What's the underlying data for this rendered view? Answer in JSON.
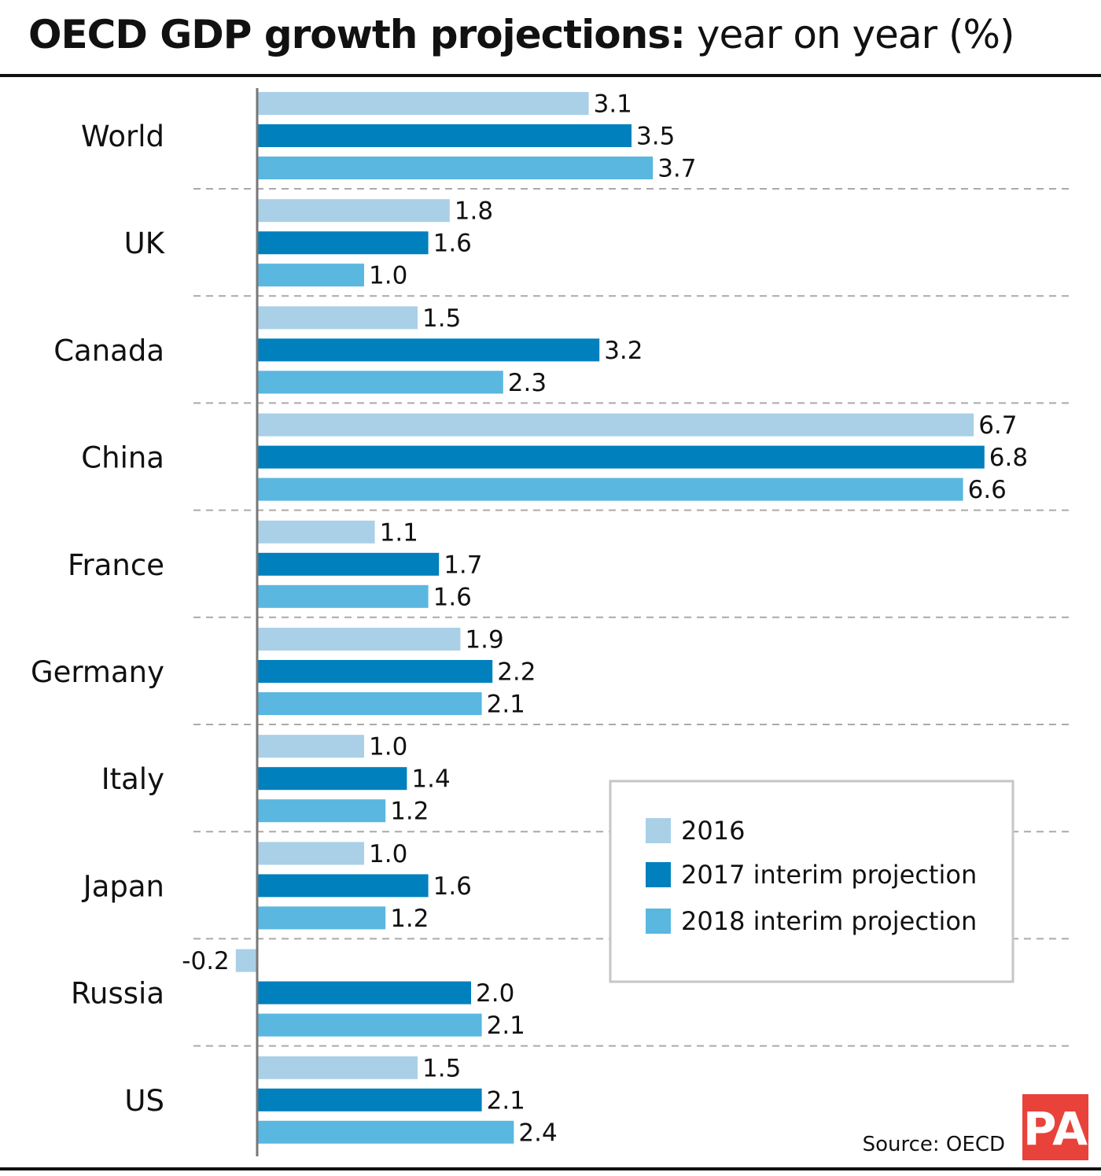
{
  "title": {
    "bold": "OECD GDP growth projections:",
    "regular": " year on year (%)"
  },
  "chart_data": {
    "type": "bar",
    "orientation": "horizontal",
    "categories": [
      "World",
      "UK",
      "Canada",
      "China",
      "France",
      "Germany",
      "Italy",
      "Japan",
      "Russia",
      "US"
    ],
    "series": [
      {
        "name": "2016",
        "color": "#a9d0e7",
        "values": [
          3.1,
          1.8,
          1.5,
          6.7,
          1.1,
          1.9,
          1.0,
          1.0,
          -0.2,
          1.5
        ]
      },
      {
        "name": "2017 interim projection",
        "color": "#0080bc",
        "values": [
          3.5,
          1.6,
          3.2,
          6.8,
          1.7,
          2.2,
          1.4,
          1.6,
          2.0,
          2.1
        ]
      },
      {
        "name": "2018 interim projection",
        "color": "#5ab7e0",
        "values": [
          3.7,
          1.0,
          2.3,
          6.6,
          1.6,
          2.1,
          1.2,
          1.2,
          2.1,
          2.4
        ]
      }
    ],
    "value_labels": [
      [
        "3.1",
        "3.5",
        "3.7"
      ],
      [
        "1.8",
        "1.6",
        "1.0"
      ],
      [
        "1.5",
        "3.2",
        "2.3"
      ],
      [
        "6.7",
        "6.8",
        "6.6"
      ],
      [
        "1.1",
        "1.7",
        "1.6"
      ],
      [
        "1.9",
        "2.2",
        "2.1"
      ],
      [
        "1.0",
        "1.4",
        "1.2"
      ],
      [
        "1.0",
        "1.6",
        "1.2"
      ],
      [
        "-0.2",
        "2.0",
        "2.1"
      ],
      [
        "1.5",
        "2.1",
        "2.4"
      ]
    ],
    "legend_position": "bottom-right",
    "grid": false,
    "xlim": [
      -0.2,
      6.8
    ]
  },
  "source": "Source: OECD",
  "logo": "PA"
}
